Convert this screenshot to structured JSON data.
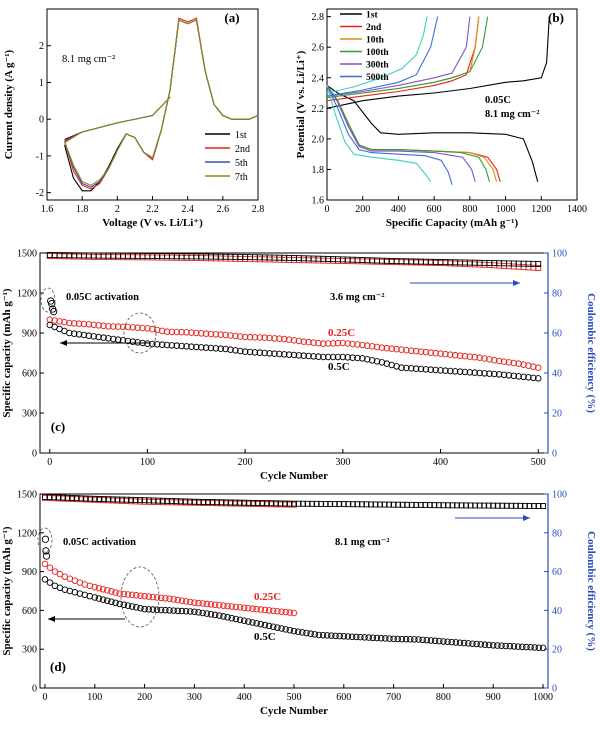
{
  "chart_data": [
    {
      "panel": "(a)",
      "type": "line",
      "xlabel": "Voltage (V vs. Li/Li⁺)",
      "ylabel": "Current density (A g⁻¹)",
      "xlim": [
        1.6,
        2.8
      ],
      "ylim": [
        -2.2,
        3.0
      ],
      "xticks": [
        1.6,
        1.8,
        2.0,
        2.2,
        2.4,
        2.6,
        2.8
      ],
      "yticks": [
        -2,
        -1,
        0,
        1,
        2
      ],
      "annotation": "8.1 mg cm⁻²",
      "legend_position": "bottom-right",
      "series": [
        {
          "name": "1st",
          "color": "#000000",
          "x": [
            1.7,
            1.75,
            1.8,
            1.85,
            1.9,
            1.95,
            2.0,
            2.05,
            2.1,
            2.15,
            2.2,
            2.25,
            2.3,
            2.35,
            2.4,
            2.45,
            2.5,
            2.55,
            2.6,
            2.65,
            2.7,
            2.75,
            2.8
          ],
          "y": [
            -0.7,
            -1.6,
            -1.95,
            -1.95,
            -1.7,
            -1.3,
            -0.8,
            -0.4,
            -0.5,
            -0.9,
            -1.1,
            -0.3,
            0.8,
            2.7,
            2.6,
            2.7,
            1.3,
            0.4,
            0.1,
            0.0,
            0.0,
            0.0,
            0.1
          ]
        },
        {
          "name": "2nd",
          "color": "#e8221c",
          "x": [
            1.7,
            1.75,
            1.8,
            1.85,
            1.9,
            1.95,
            2.0,
            2.05,
            2.1,
            2.15,
            2.2,
            2.25,
            2.3,
            2.35,
            2.4,
            2.45,
            2.5,
            2.55,
            2.6,
            2.65,
            2.7,
            2.75,
            2.8
          ],
          "y": [
            -0.6,
            -1.4,
            -1.8,
            -1.9,
            -1.75,
            -1.35,
            -0.85,
            -0.4,
            -0.5,
            -0.9,
            -1.1,
            -0.3,
            0.8,
            2.75,
            2.65,
            2.75,
            1.3,
            0.4,
            0.1,
            0.0,
            0.0,
            0.0,
            0.1
          ]
        },
        {
          "name": "5th",
          "color": "#3552b5",
          "x": [
            1.7,
            1.75,
            1.8,
            1.85,
            1.9,
            1.95,
            2.0,
            2.05,
            2.1,
            2.15,
            2.2,
            2.25,
            2.3,
            2.35,
            2.4,
            2.45,
            2.5,
            2.55,
            2.6,
            2.65,
            2.7,
            2.75,
            2.8
          ],
          "y": [
            -0.6,
            -1.3,
            -1.75,
            -1.85,
            -1.7,
            -1.35,
            -0.85,
            -0.4,
            -0.5,
            -0.9,
            -1.05,
            -0.3,
            0.8,
            2.7,
            2.6,
            2.7,
            1.3,
            0.4,
            0.1,
            0.0,
            0.0,
            0.0,
            0.1
          ]
        },
        {
          "name": "7th",
          "color": "#8a8a1a",
          "x": [
            1.7,
            1.75,
            1.8,
            1.85,
            1.9,
            1.95,
            2.0,
            2.05,
            2.1,
            2.15,
            2.2,
            2.25,
            2.3,
            2.35,
            2.4,
            2.45,
            2.5,
            2.55,
            2.6,
            2.65,
            2.7,
            2.75,
            2.8
          ],
          "y": [
            -0.6,
            -1.25,
            -1.7,
            -1.8,
            -1.65,
            -1.35,
            -0.85,
            -0.4,
            -0.5,
            -0.9,
            -1.05,
            -0.3,
            0.8,
            2.7,
            2.6,
            2.7,
            1.3,
            0.4,
            0.1,
            0.0,
            0.0,
            0.0,
            0.1
          ]
        }
      ]
    },
    {
      "panel": "(b)",
      "type": "line",
      "xlabel": "Specific Capacity (mAh g⁻¹)",
      "ylabel": "Potential (V vs. Li/Li⁺)",
      "xlim": [
        0,
        1400
      ],
      "ylim": [
        1.6,
        2.85
      ],
      "xticks": [
        0,
        200,
        400,
        600,
        800,
        1000,
        1200,
        1400
      ],
      "yticks": [
        1.6,
        1.8,
        2.0,
        2.2,
        2.4,
        2.6,
        2.8
      ],
      "annotations": [
        "0.05C",
        "8.1 mg cm⁻²"
      ],
      "legend_position": "top-left",
      "series": [
        {
          "name": "1st",
          "color": "#000000",
          "discharge": {
            "x": [
              0,
              60,
              150,
              250,
              300,
              400,
              600,
              800,
              1000,
              1100,
              1150,
              1180
            ],
            "y": [
              2.35,
              2.3,
              2.25,
              2.1,
              2.04,
              2.03,
              2.04,
              2.04,
              2.03,
              2.0,
              1.85,
              1.72
            ]
          },
          "charge": {
            "x": [
              0,
              200,
              400,
              600,
              800,
              1000,
              1100,
              1200,
              1230,
              1240,
              1245
            ],
            "y": [
              2.2,
              2.25,
              2.28,
              2.3,
              2.33,
              2.37,
              2.38,
              2.4,
              2.5,
              2.7,
              2.8
            ]
          }
        },
        {
          "name": "2nd",
          "color": "#e8221c",
          "discharge": {
            "x": [
              0,
              60,
              120,
              180,
              250,
              400,
              600,
              800,
              900,
              950,
              970
            ],
            "y": [
              2.35,
              2.25,
              2.1,
              1.96,
              1.93,
              1.93,
              1.92,
              1.91,
              1.88,
              1.8,
              1.72
            ]
          },
          "charge": {
            "x": [
              0,
              200,
              400,
              600,
              700,
              780,
              830,
              850
            ],
            "y": [
              2.25,
              2.28,
              2.31,
              2.35,
              2.38,
              2.42,
              2.6,
              2.8
            ]
          }
        },
        {
          "name": "10th",
          "color": "#e8890e",
          "discharge": {
            "x": [
              0,
              60,
              120,
              180,
              250,
              400,
              600,
              800,
              880,
              930,
              950
            ],
            "y": [
              2.35,
              2.25,
              2.1,
              1.96,
              1.93,
              1.93,
              1.92,
              1.91,
              1.88,
              1.8,
              1.72
            ]
          },
          "charge": {
            "x": [
              0,
              200,
              400,
              600,
              700,
              800,
              830,
              850
            ],
            "y": [
              2.27,
              2.3,
              2.33,
              2.37,
              2.4,
              2.44,
              2.6,
              2.8
            ]
          }
        },
        {
          "name": "100th",
          "color": "#2f9e3a",
          "discharge": {
            "x": [
              0,
              60,
              120,
              180,
              250,
              400,
              600,
              750,
              850,
              890,
              910
            ],
            "y": [
              2.35,
              2.25,
              2.1,
              1.96,
              1.93,
              1.93,
              1.92,
              1.91,
              1.88,
              1.8,
              1.72
            ]
          },
          "charge": {
            "x": [
              0,
              200,
              400,
              600,
              700,
              800,
              870,
              900
            ],
            "y": [
              2.27,
              2.3,
              2.33,
              2.37,
              2.4,
              2.44,
              2.6,
              2.8
            ]
          }
        },
        {
          "name": "300th",
          "color": "#7d56c6",
          "discharge": {
            "x": [
              0,
              60,
              120,
              180,
              250,
              400,
              600,
              760,
              810,
              830
            ],
            "y": [
              2.35,
              2.24,
              2.08,
              1.95,
              1.92,
              1.92,
              1.91,
              1.88,
              1.8,
              1.72
            ]
          },
          "charge": {
            "x": [
              0,
              200,
              400,
              600,
              700,
              780,
              800
            ],
            "y": [
              2.28,
              2.31,
              2.35,
              2.4,
              2.43,
              2.6,
              2.8
            ]
          }
        },
        {
          "name": "500th",
          "color": "#3b6fd6",
          "discharge": {
            "x": [
              0,
              60,
              120,
              180,
              250,
              400,
              550,
              640,
              680,
              700
            ],
            "y": [
              2.35,
              2.2,
              2.03,
              1.93,
              1.91,
              1.9,
              1.89,
              1.86,
              1.78,
              1.7
            ]
          },
          "charge": {
            "x": [
              0,
              200,
              400,
              500,
              580,
              620
            ],
            "y": [
              2.28,
              2.32,
              2.37,
              2.42,
              2.6,
              2.8
            ]
          }
        },
        {
          "name": "",
          "color": "#3fd0c0",
          "discharge": {
            "x": [
              0,
              50,
              100,
              150,
              250,
              400,
              500,
              550,
              580
            ],
            "y": [
              2.35,
              2.15,
              1.98,
              1.9,
              1.88,
              1.86,
              1.84,
              1.77,
              1.72
            ]
          },
          "charge": {
            "x": [
              0,
              150,
              300,
              420,
              500,
              540,
              560
            ],
            "y": [
              2.3,
              2.34,
              2.4,
              2.46,
              2.55,
              2.68,
              2.8
            ]
          }
        }
      ]
    },
    {
      "panel": "(c)",
      "type": "scatter",
      "xlabel": "Cycle Number",
      "ylabel": "Specific capacity (mAh g⁻¹)",
      "y2label": "Coulombic efficiency (%)",
      "xlim": [
        -10,
        510
      ],
      "ylim": [
        0,
        1500
      ],
      "y2lim": [
        0,
        100
      ],
      "xticks": [
        0,
        100,
        200,
        300,
        400,
        500
      ],
      "yticks": [
        0,
        300,
        600,
        900,
        1200,
        1500
      ],
      "y2ticks": [
        0,
        20,
        40,
        60,
        80,
        100
      ],
      "annotations": [
        "0.05C activation",
        "3.6 mg cm⁻²"
      ],
      "series": [
        {
          "name": "0.25C",
          "color": "#e8221c",
          "x": [
            0,
            20,
            40,
            60,
            80,
            100,
            120,
            140,
            160,
            180,
            200,
            220,
            240,
            260,
            280,
            300,
            320,
            340,
            360,
            380,
            400,
            420,
            440,
            460,
            480,
            500
          ],
          "y": [
            1000,
            975,
            965,
            950,
            945,
            935,
            910,
            905,
            895,
            885,
            870,
            865,
            855,
            835,
            820,
            825,
            810,
            790,
            775,
            760,
            745,
            730,
            715,
            690,
            670,
            640
          ]
        },
        {
          "name": "0.5C",
          "color": "#000000",
          "x": [
            0,
            20,
            40,
            60,
            80,
            100,
            120,
            140,
            160,
            180,
            200,
            220,
            240,
            260,
            280,
            300,
            320,
            340,
            360,
            380,
            400,
            420,
            440,
            460,
            480,
            500
          ],
          "y": [
            960,
            900,
            880,
            860,
            840,
            820,
            810,
            800,
            790,
            780,
            760,
            750,
            740,
            730,
            720,
            720,
            710,
            680,
            640,
            630,
            620,
            610,
            600,
            590,
            575,
            560
          ]
        },
        {
          "name": "",
          "color": "#e8221c",
          "axis": "y2",
          "x": [
            0,
            50,
            100,
            150,
            200,
            250,
            300,
            350,
            400,
            450,
            500
          ],
          "y": [
            98.5,
            98.0,
            97.8,
            97.5,
            97.0,
            96.5,
            96.0,
            95.5,
            95.0,
            94.0,
            92.5
          ]
        },
        {
          "name": "",
          "color": "#000000",
          "axis": "y2",
          "x": [
            0,
            50,
            100,
            150,
            200,
            250,
            300,
            350,
            400,
            450,
            500
          ],
          "y": [
            99.0,
            98.7,
            98.5,
            98.3,
            98.0,
            97.5,
            96.8,
            96.0,
            95.5,
            95.0,
            94.5
          ]
        }
      ],
      "activation_points": [
        [
          1,
          1140
        ],
        [
          2,
          1120
        ],
        [
          3,
          1080
        ],
        [
          4,
          1060
        ]
      ]
    },
    {
      "panel": "(d)",
      "type": "scatter",
      "xlabel": "Cycle Number",
      "ylabel": "Specific capacity (mAh g⁻¹)",
      "y2label": "Coulombic efficiency (%)",
      "xlim": [
        -10,
        1010
      ],
      "ylim": [
        0,
        1500
      ],
      "y2lim": [
        0,
        100
      ],
      "xticks": [
        0,
        100,
        200,
        300,
        400,
        500,
        600,
        700,
        800,
        900,
        1000
      ],
      "yticks": [
        0,
        300,
        600,
        900,
        1200,
        1500
      ],
      "y2ticks": [
        0,
        20,
        40,
        60,
        80,
        100
      ],
      "annotations": [
        "0.05C activation",
        "8.1 mg cm⁻²"
      ],
      "series": [
        {
          "name": "0.25C",
          "color": "#e8221c",
          "x": [
            0,
            20,
            40,
            60,
            80,
            100,
            150,
            200,
            250,
            300,
            350,
            400,
            450,
            500
          ],
          "y": [
            960,
            900,
            860,
            830,
            800,
            780,
            730,
            710,
            690,
            660,
            640,
            620,
            600,
            580
          ]
        },
        {
          "name": "0.5C",
          "color": "#000000",
          "x": [
            0,
            20,
            40,
            60,
            80,
            100,
            150,
            200,
            250,
            300,
            350,
            400,
            450,
            500,
            550,
            600,
            650,
            700,
            750,
            800,
            850,
            900,
            950,
            1000
          ],
          "y": [
            840,
            790,
            760,
            740,
            720,
            700,
            650,
            610,
            600,
            590,
            560,
            520,
            480,
            440,
            410,
            400,
            390,
            380,
            375,
            360,
            345,
            330,
            320,
            310
          ]
        },
        {
          "name": "",
          "color": "#e8221c",
          "axis": "y2",
          "x": [
            0,
            100,
            200,
            300,
            400,
            500
          ],
          "y": [
            98.0,
            97.0,
            96.0,
            95.5,
            95.0,
            94.5
          ]
        },
        {
          "name": "",
          "color": "#000000",
          "axis": "y2",
          "x": [
            0,
            100,
            200,
            300,
            400,
            500,
            600,
            700,
            800,
            900,
            1000
          ],
          "y": [
            98.5,
            97.5,
            96.8,
            96.0,
            95.5,
            95.0,
            94.8,
            94.5,
            94.2,
            94.0,
            93.8
          ]
        }
      ],
      "activation_points": [
        [
          1,
          1150
        ],
        [
          2,
          1060
        ],
        [
          3,
          1020
        ]
      ]
    }
  ]
}
